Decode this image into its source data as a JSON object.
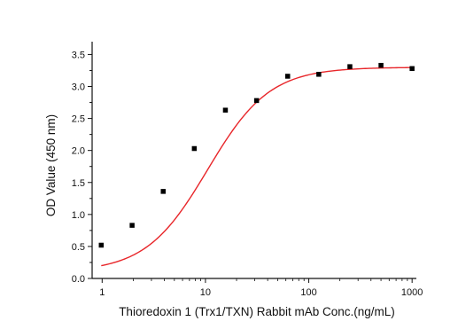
{
  "chart_data": {
    "type": "scatter",
    "title": "",
    "xlabel": "Thioredoxin 1 (Trx1/TXN) Rabbit mAb Conc.(ng/mL)",
    "ylabel": "OD Value (450 nm)",
    "x_scale": "log",
    "xlim": [
      0.8,
      1100
    ],
    "ylim": [
      0.0,
      3.7
    ],
    "x_ticks": [
      1,
      10,
      100,
      1000
    ],
    "x_tick_labels": [
      "1",
      "10",
      "100",
      "1000"
    ],
    "y_ticks": [
      0.0,
      0.5,
      1.0,
      1.5,
      2.0,
      2.5,
      3.0,
      3.5
    ],
    "y_tick_labels": [
      "0.0",
      "0.5",
      "1.0",
      "1.5",
      "2.0",
      "2.5",
      "3.0",
      "3.5"
    ],
    "grid": false,
    "legend": "none",
    "series": [
      {
        "type": "scatter",
        "marker": "square",
        "color": "#000000",
        "points": [
          {
            "x": 0.98,
            "y": 0.52
          },
          {
            "x": 1.95,
            "y": 0.83
          },
          {
            "x": 3.9,
            "y": 1.36
          },
          {
            "x": 7.8,
            "y": 2.03
          },
          {
            "x": 15.6,
            "y": 2.63
          },
          {
            "x": 31.25,
            "y": 2.78
          },
          {
            "x": 62.5,
            "y": 3.16
          },
          {
            "x": 125,
            "y": 3.19
          },
          {
            "x": 250,
            "y": 3.31
          },
          {
            "x": 500,
            "y": 3.33
          },
          {
            "x": 1000,
            "y": 3.28
          }
        ]
      },
      {
        "type": "line",
        "fit": "four-parameter logistic",
        "color": "#e8262a",
        "fit_parameters": {
          "bottom": 0.1,
          "top": 3.3,
          "ec50": 10.5,
          "hill": 1.45
        },
        "x_range": [
          0.98,
          1000
        ]
      }
    ]
  }
}
